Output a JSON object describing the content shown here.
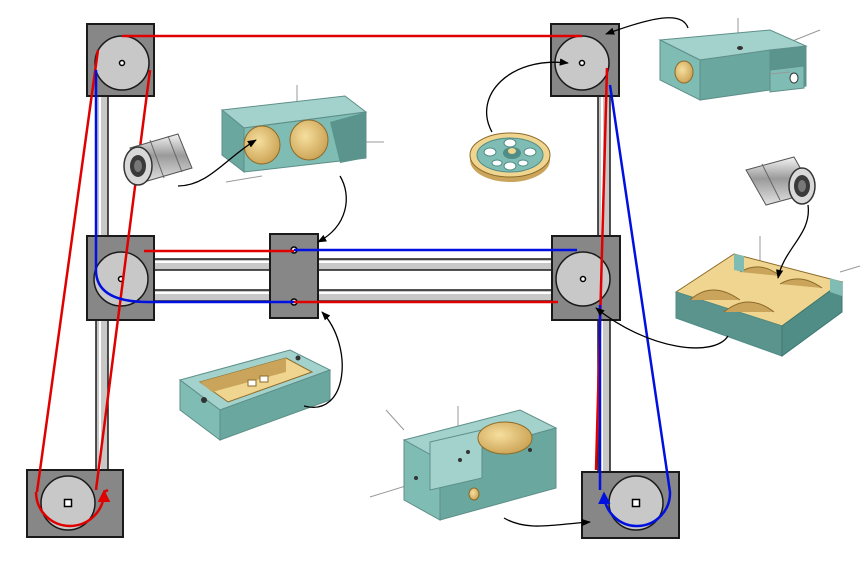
{
  "colors": {
    "background": "#ffffff",
    "bracket_fill": "#878787",
    "bracket_stroke": "#1a1a1a",
    "pulley_fill": "#c8c8c8",
    "rail_fill": "#c8c8c8",
    "belt_red": "#e00000",
    "belt_blue": "#0010e0",
    "part_teal": "#7fbcb4",
    "part_teal_dark": "#4f8d86",
    "part_teal_top": "#a2d2cb",
    "part_cut": "#f0d590",
    "part_cut_dark": "#c9a45a",
    "bearing_steel": "#c9c9c9",
    "leader_line": "#000000"
  },
  "icons": {
    "corner_pulley": "pulley-icon",
    "idler_bracket": "idler-bracket-icon",
    "linear_bearing": "linear-bearing-icon",
    "flanged_pulley_wheel": "pulley-wheel-icon",
    "bearing_block": "bearing-block-icon",
    "carriage_block": "carriage-block-icon",
    "motor_mount": "motor-mount-icon",
    "bearing_cradle": "bearing-cradle-icon"
  }
}
